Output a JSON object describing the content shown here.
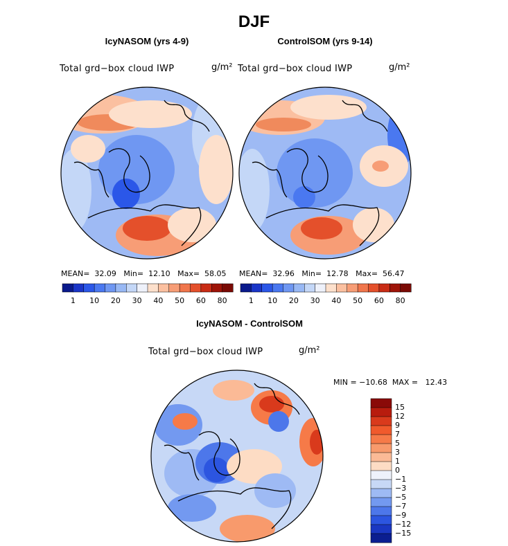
{
  "figure": {
    "title": "DJF",
    "variable_label": "Total grd−box cloud IWP",
    "units": "g/m²"
  },
  "panels": [
    {
      "title": "IcyNASOM (yrs 4-9)",
      "stats_text": "MEAN=  32.09   Min=  12.10   Max=  58.05",
      "stats": {
        "mean": 32.09,
        "min": 12.1,
        "max": 58.05
      }
    },
    {
      "title": "ControlSOM (yrs 9-14)",
      "stats_text": "MEAN=  32.96   Min=  12.78   Max=  56.47",
      "stats": {
        "mean": 32.96,
        "min": 12.78,
        "max": 56.47
      }
    }
  ],
  "diff_panel": {
    "title": "IcyNASOM - ControlSOM",
    "stats_text": "MIN = −10.68  MAX =   12.43",
    "stats": {
      "min": -10.68,
      "max": 12.43
    }
  },
  "colorbar_abs": {
    "tick_labels": [
      "1",
      "10",
      "20",
      "30",
      "40",
      "50",
      "60",
      "80"
    ],
    "colors": [
      "#0a1a8c",
      "#1a35c8",
      "#2b57e8",
      "#4a78f0",
      "#6f97f2",
      "#98b8f4",
      "#c4d7f7",
      "#eef1fa",
      "#fde0cc",
      "#fbc0a0",
      "#f79d76",
      "#f0764c",
      "#e4502b",
      "#c92c15",
      "#9e1408",
      "#7a0a05"
    ]
  },
  "colorbar_diff": {
    "tick_labels": [
      "15",
      "12",
      "9",
      "7",
      "5",
      "3",
      "1",
      "0",
      "−1",
      "−3",
      "−5",
      "−7",
      "−9",
      "−12",
      "−15"
    ],
    "colors": [
      "#8a0a08",
      "#b81c0e",
      "#d93a1c",
      "#f05a2c",
      "#f67a48",
      "#f89a6c",
      "#fbba96",
      "#fddcc4",
      "#eef2fb",
      "#c7d8f6",
      "#9ebaf4",
      "#7399f0",
      "#4d77ea",
      "#2c55e0",
      "#1a37c2",
      "#0b1e90"
    ]
  },
  "chart_data": [
    {
      "type": "heatmap",
      "title": "IcyNASOM (yrs 4-9)",
      "projection": "north polar stereographic",
      "variable": "Total grd−box cloud IWP",
      "units": "g/m²",
      "mean": 32.09,
      "min": 12.1,
      "max": 58.05,
      "levels": [
        1,
        10,
        20,
        30,
        40,
        50,
        60,
        80
      ]
    },
    {
      "type": "heatmap",
      "title": "ControlSOM (yrs 9-14)",
      "projection": "north polar stereographic",
      "variable": "Total grd−box cloud IWP",
      "units": "g/m²",
      "mean": 32.96,
      "min": 12.78,
      "max": 56.47,
      "levels": [
        1,
        10,
        20,
        30,
        40,
        50,
        60,
        80
      ]
    },
    {
      "type": "heatmap",
      "title": "IcyNASOM - ControlSOM",
      "projection": "north polar stereographic",
      "variable": "Total grd−box cloud IWP",
      "units": "g/m²",
      "min": -10.68,
      "max": 12.43,
      "levels": [
        -15,
        -12,
        -9,
        -7,
        -5,
        -3,
        -1,
        0,
        1,
        3,
        5,
        7,
        9,
        12,
        15
      ]
    }
  ]
}
